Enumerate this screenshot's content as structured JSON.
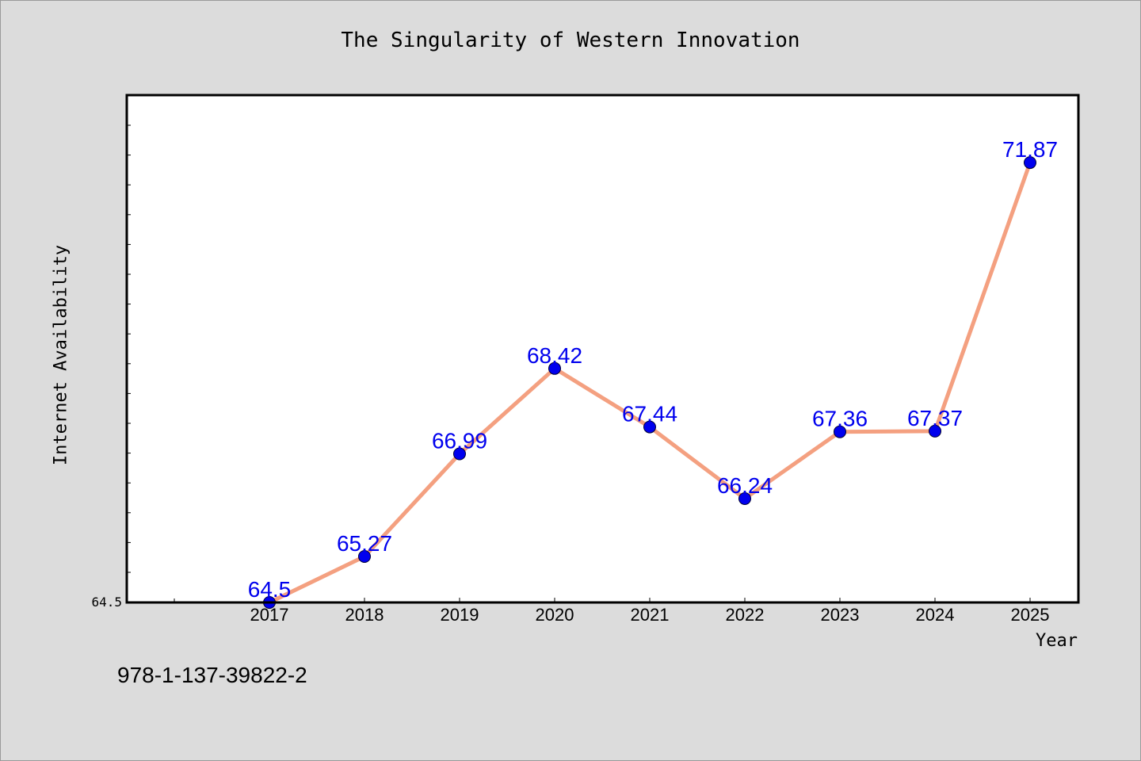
{
  "chart_data": {
    "type": "line",
    "title": "The Singularity of Western Innovation",
    "xlabel": "Year",
    "ylabel": "Internet Availability",
    "categories": [
      "2017",
      "2018",
      "2019",
      "2020",
      "2021",
      "2022",
      "2023",
      "2024",
      "2025"
    ],
    "series": [
      {
        "values": [
          64.5,
          65.27,
          66.99,
          68.42,
          67.44,
          66.24,
          67.36,
          67.37,
          71.87
        ],
        "labels": [
          "64.5",
          "65.27",
          "66.99",
          "68.42",
          "67.44",
          "66.24",
          "67.36",
          "67.37",
          "71.87"
        ]
      }
    ],
    "y_tick_labels": [
      "64.5"
    ],
    "ylim": [
      64.5,
      73.0
    ],
    "grid": false,
    "line_color": "#f4a080",
    "marker_color": "#0000ee",
    "label_color": "#0000ee",
    "plot_background": "#ffffff",
    "page_background": "#dcdcdc"
  },
  "footer": {
    "code": "978-1-137-39822-2"
  }
}
